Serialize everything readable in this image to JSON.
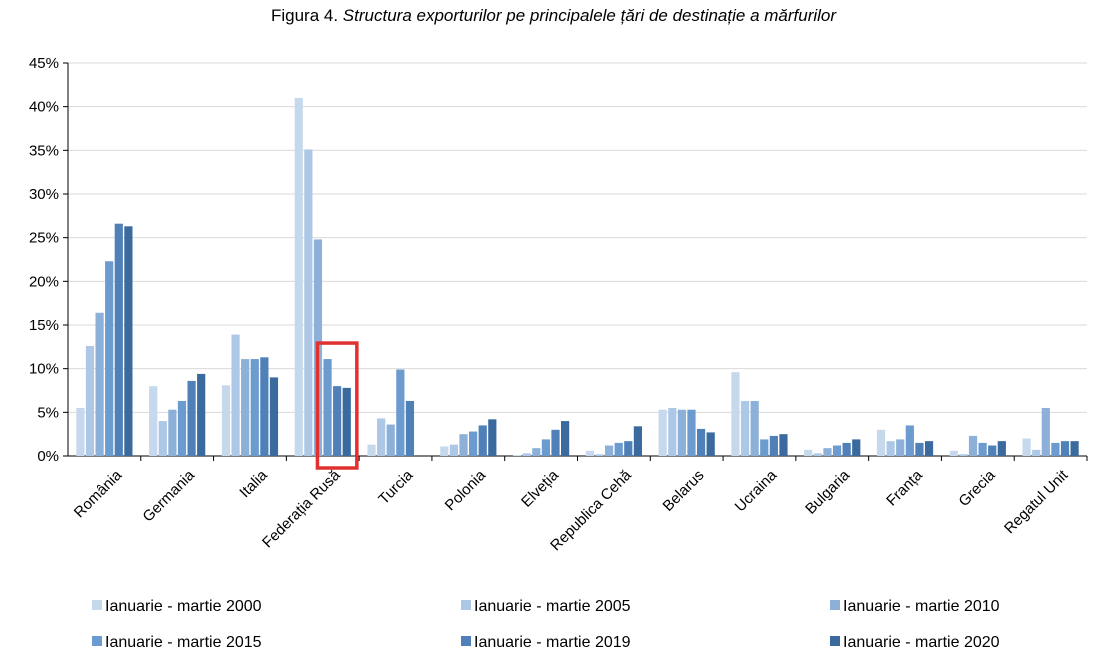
{
  "chart_data": {
    "type": "bar",
    "title_prefix": "Figura 4.",
    "title": "Structura exporturilor pe principalele țări de destinație a mărfurilor",
    "ylim": [
      0,
      45
    ],
    "y_ticks": [
      "0%",
      "5%",
      "10%",
      "15%",
      "20%",
      "25%",
      "30%",
      "35%",
      "40%",
      "45%"
    ],
    "y_tick_values": [
      0,
      5,
      10,
      15,
      20,
      25,
      30,
      35,
      40,
      45
    ],
    "grid": true,
    "legend_position": "bottom",
    "categories": [
      "România",
      "Germania",
      "Italia",
      "Federația Rusă",
      "Turcia",
      "Polonia",
      "Elveția",
      "Republica Cehă",
      "Belarus",
      "Ucraina",
      "Bulgaria",
      "Franța",
      "Grecia",
      "Regatul Unit"
    ],
    "series": [
      {
        "name": "Ianuarie - martie 2000",
        "color": "#c6d9ec",
        "values": [
          5.5,
          8.0,
          8.1,
          41.0,
          1.3,
          1.1,
          0.1,
          0.6,
          5.3,
          9.6,
          0.7,
          3.0,
          0.6,
          2.0
        ]
      },
      {
        "name": "Ianuarie - martie 2005",
        "color": "#adc8e6",
        "values": [
          12.6,
          4.0,
          13.9,
          35.1,
          4.3,
          1.3,
          0.3,
          0.2,
          5.5,
          6.3,
          0.3,
          1.7,
          0.2,
          0.7
        ]
      },
      {
        "name": "Ianuarie - martie 2010",
        "color": "#8db0d8",
        "values": [
          16.4,
          5.3,
          11.1,
          24.8,
          3.6,
          2.5,
          0.9,
          1.2,
          5.3,
          6.3,
          0.9,
          1.9,
          2.3,
          5.5
        ]
      },
      {
        "name": "Ianuarie - martie 2015",
        "color": "#6c9bcf",
        "values": [
          22.3,
          6.3,
          11.1,
          11.1,
          9.9,
          2.8,
          1.9,
          1.5,
          5.3,
          1.9,
          1.2,
          3.5,
          1.5,
          1.5
        ]
      },
      {
        "name": "Ianuarie - martie 2019",
        "color": "#4f80b8",
        "values": [
          26.6,
          8.6,
          11.3,
          8.0,
          6.3,
          3.5,
          3.0,
          1.7,
          3.1,
          2.3,
          1.5,
          1.5,
          1.2,
          1.7
        ]
      },
      {
        "name": "Ianuarie - martie 2020",
        "color": "#3b6a9e",
        "values": [
          26.3,
          9.4,
          9.0,
          7.8,
          0,
          4.2,
          4.0,
          3.4,
          2.7,
          2.5,
          1.9,
          1.7,
          1.7,
          1.7
        ]
      }
    ],
    "highlight": {
      "category": "Federația Rusă",
      "series": [
        "Ianuarie - martie 2015",
        "Ianuarie - martie 2019",
        "Ianuarie - martie 2020"
      ],
      "color": "#e03030"
    }
  }
}
